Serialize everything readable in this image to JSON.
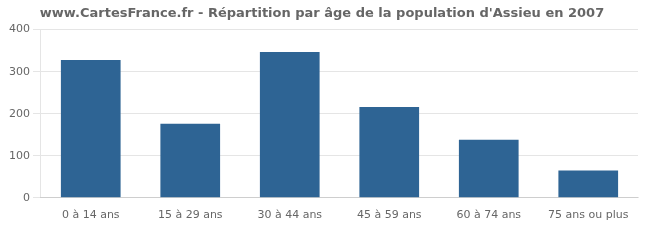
{
  "chart_data": {
    "type": "bar",
    "title": "www.CartesFrance.fr - Répartition par âge de la population d'Assieu en 2007",
    "categories": [
      "0 à 14 ans",
      "15 à 29 ans",
      "30 à 44 ans",
      "45 à 59 ans",
      "60 à 74 ans",
      "75 ans ou plus"
    ],
    "values": [
      328,
      176,
      347,
      216,
      138,
      65
    ],
    "color": "#2e6494",
    "ylim": [
      0,
      400
    ],
    "yticks": [
      0,
      100,
      200,
      300,
      400
    ],
    "grid": true
  }
}
